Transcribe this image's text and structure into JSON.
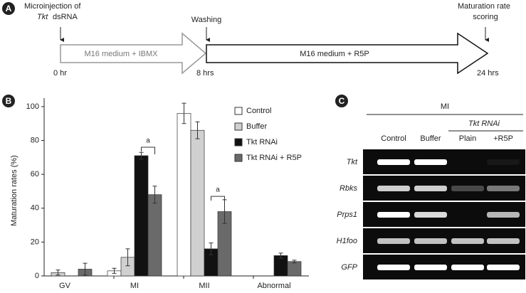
{
  "panel_a": {
    "label": "A",
    "injection": [
      "Microinjection of",
      "Tkt",
      "dsRNA"
    ],
    "washing": "Washing",
    "scoring": [
      "Maturation rate",
      "scoring"
    ],
    "medium_1": "M16 medium + IBMX",
    "medium_2": "M16 medium + R5P",
    "times": [
      "0 hr",
      "8 hrs",
      "24 hrs"
    ]
  },
  "panel_b": {
    "label": "B"
  },
  "chart_data": {
    "type": "bar",
    "y_label": "Maturation rates (%)",
    "categories": [
      "GV",
      "MI",
      "MII",
      "Abnormal"
    ],
    "series": [
      {
        "name": "Control",
        "color": "#ffffff",
        "values": [
          0,
          3,
          96,
          0
        ],
        "errors": [
          null,
          1.5,
          6,
          null
        ]
      },
      {
        "name": "Buffer",
        "color": "#d0d0d0",
        "values": [
          2,
          11,
          86,
          0
        ],
        "errors": [
          1.5,
          5,
          5,
          null
        ]
      },
      {
        "name": "Tkt RNAi",
        "color": "#111111",
        "values": [
          0,
          71,
          16,
          12
        ],
        "errors": [
          null,
          2,
          3.5,
          1.5
        ]
      },
      {
        "name": "Tkt RNAi + R5P",
        "color": "#6a6a6a",
        "values": [
          4,
          48,
          38,
          8.5
        ],
        "errors": [
          3.5,
          5,
          7,
          0.8
        ]
      }
    ],
    "annotations": [
      "a",
      "a"
    ],
    "ylim": [
      0,
      105
    ],
    "yticks": [
      0,
      20,
      40,
      60,
      80,
      100
    ]
  },
  "panel_c": {
    "label": "C",
    "stage": "MI",
    "group": "Tkt RNAi",
    "columns": [
      "Control",
      "Buffer",
      "Plain",
      "+R5P"
    ],
    "genes": [
      "Tkt",
      "Rbks",
      "Prps1",
      "H1foo",
      "GFP"
    ]
  }
}
